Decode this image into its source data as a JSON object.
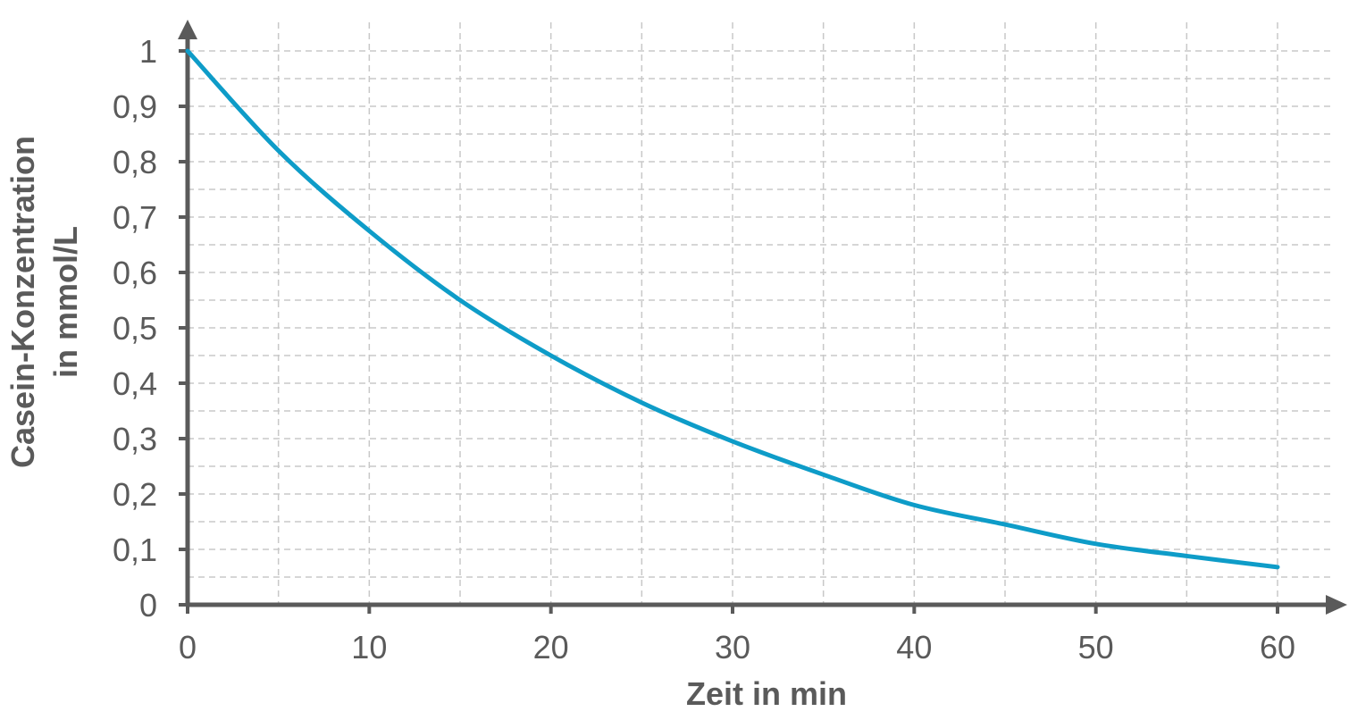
{
  "chart_data": {
    "type": "line",
    "title": "",
    "xlabel": "Zeit in min",
    "ylabel_lines": [
      "Casein-Konzentration",
      "in mmol/L"
    ],
    "xlim": [
      0,
      60
    ],
    "ylim": [
      0,
      1
    ],
    "x_ticks": [
      0,
      10,
      20,
      30,
      40,
      50,
      60
    ],
    "x_tick_labels": [
      "0",
      "10",
      "20",
      "30",
      "40",
      "50",
      "60"
    ],
    "y_ticks": [
      0,
      0.1,
      0.2,
      0.3,
      0.4,
      0.5,
      0.6,
      0.7,
      0.8,
      0.9,
      1
    ],
    "y_tick_labels": [
      "0",
      "0,1",
      "0,2",
      "0,3",
      "0,4",
      "0,5",
      "0,6",
      "0,7",
      "0,8",
      "0,9",
      "1"
    ],
    "x_minor_grid_step": 5,
    "y_minor_grid_step": 0.05,
    "grid": true,
    "line_color": "#0e9cc8",
    "axis_color": "#5a5a5a",
    "grid_color": "#c8c8c8",
    "series": [
      {
        "x": [
          0,
          5,
          10,
          15,
          20,
          25,
          30,
          35,
          40,
          45,
          50,
          55,
          60
        ],
        "y": [
          1.0,
          0.82,
          0.675,
          0.55,
          0.45,
          0.365,
          0.295,
          0.235,
          0.18,
          0.145,
          0.11,
          0.088,
          0.068
        ]
      }
    ]
  }
}
